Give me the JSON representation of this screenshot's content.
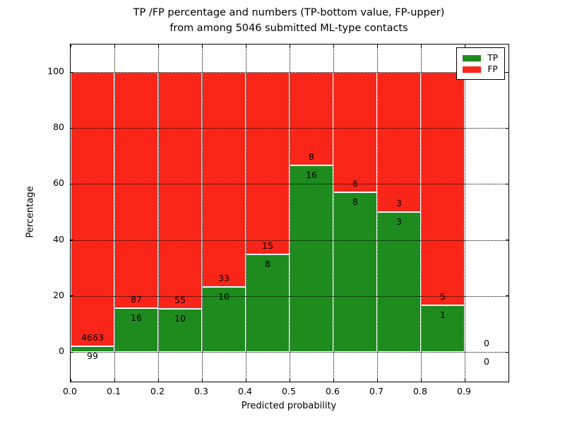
{
  "chart_data": {
    "type": "bar",
    "stacked": true,
    "normalized_to": 100,
    "title_line1": "TP /FP percentage and numbers (TP-bottom value, FP-upper)",
    "title_line2": "from among 5046 submitted ML-type contacts",
    "xlabel": "Predicted probability",
    "ylabel": "Percentage",
    "bin_edges": [
      0.0,
      0.1,
      0.2,
      0.3,
      0.4,
      0.5,
      0.6,
      0.7,
      0.8,
      0.9,
      1.0
    ],
    "series": [
      {
        "name": "TP",
        "color": "#1e8b1e",
        "counts": [
          99,
          16,
          10,
          10,
          8,
          16,
          8,
          3,
          1,
          0
        ]
      },
      {
        "name": "FP",
        "color": "#f92519",
        "counts": [
          4663,
          87,
          55,
          33,
          15,
          8,
          6,
          3,
          5,
          0
        ]
      }
    ],
    "tp_percent_per_bin": [
      2.1,
      15.5,
      15.4,
      23.3,
      34.8,
      66.7,
      57.1,
      50.0,
      16.7,
      0.0
    ],
    "annotation_rule": "FP count printed above TP/FP boundary, TP count printed below it",
    "xticks": [
      "0.0",
      "0.1",
      "0.2",
      "0.3",
      "0.4",
      "0.5",
      "0.6",
      "0.7",
      "0.8",
      "0.9"
    ],
    "yticks": [
      "0",
      "20",
      "40",
      "60",
      "80",
      "100"
    ],
    "ytick_values": [
      0,
      20,
      40,
      60,
      80,
      100
    ],
    "xlim": [
      0.0,
      1.0
    ],
    "ylim": [
      -10.6,
      109.8
    ],
    "grid": "dotted",
    "legend": {
      "position": "upper-right",
      "entries": [
        {
          "label": "TP",
          "color": "#1e8b1e"
        },
        {
          "label": "FP",
          "color": "#f92519"
        }
      ]
    }
  }
}
